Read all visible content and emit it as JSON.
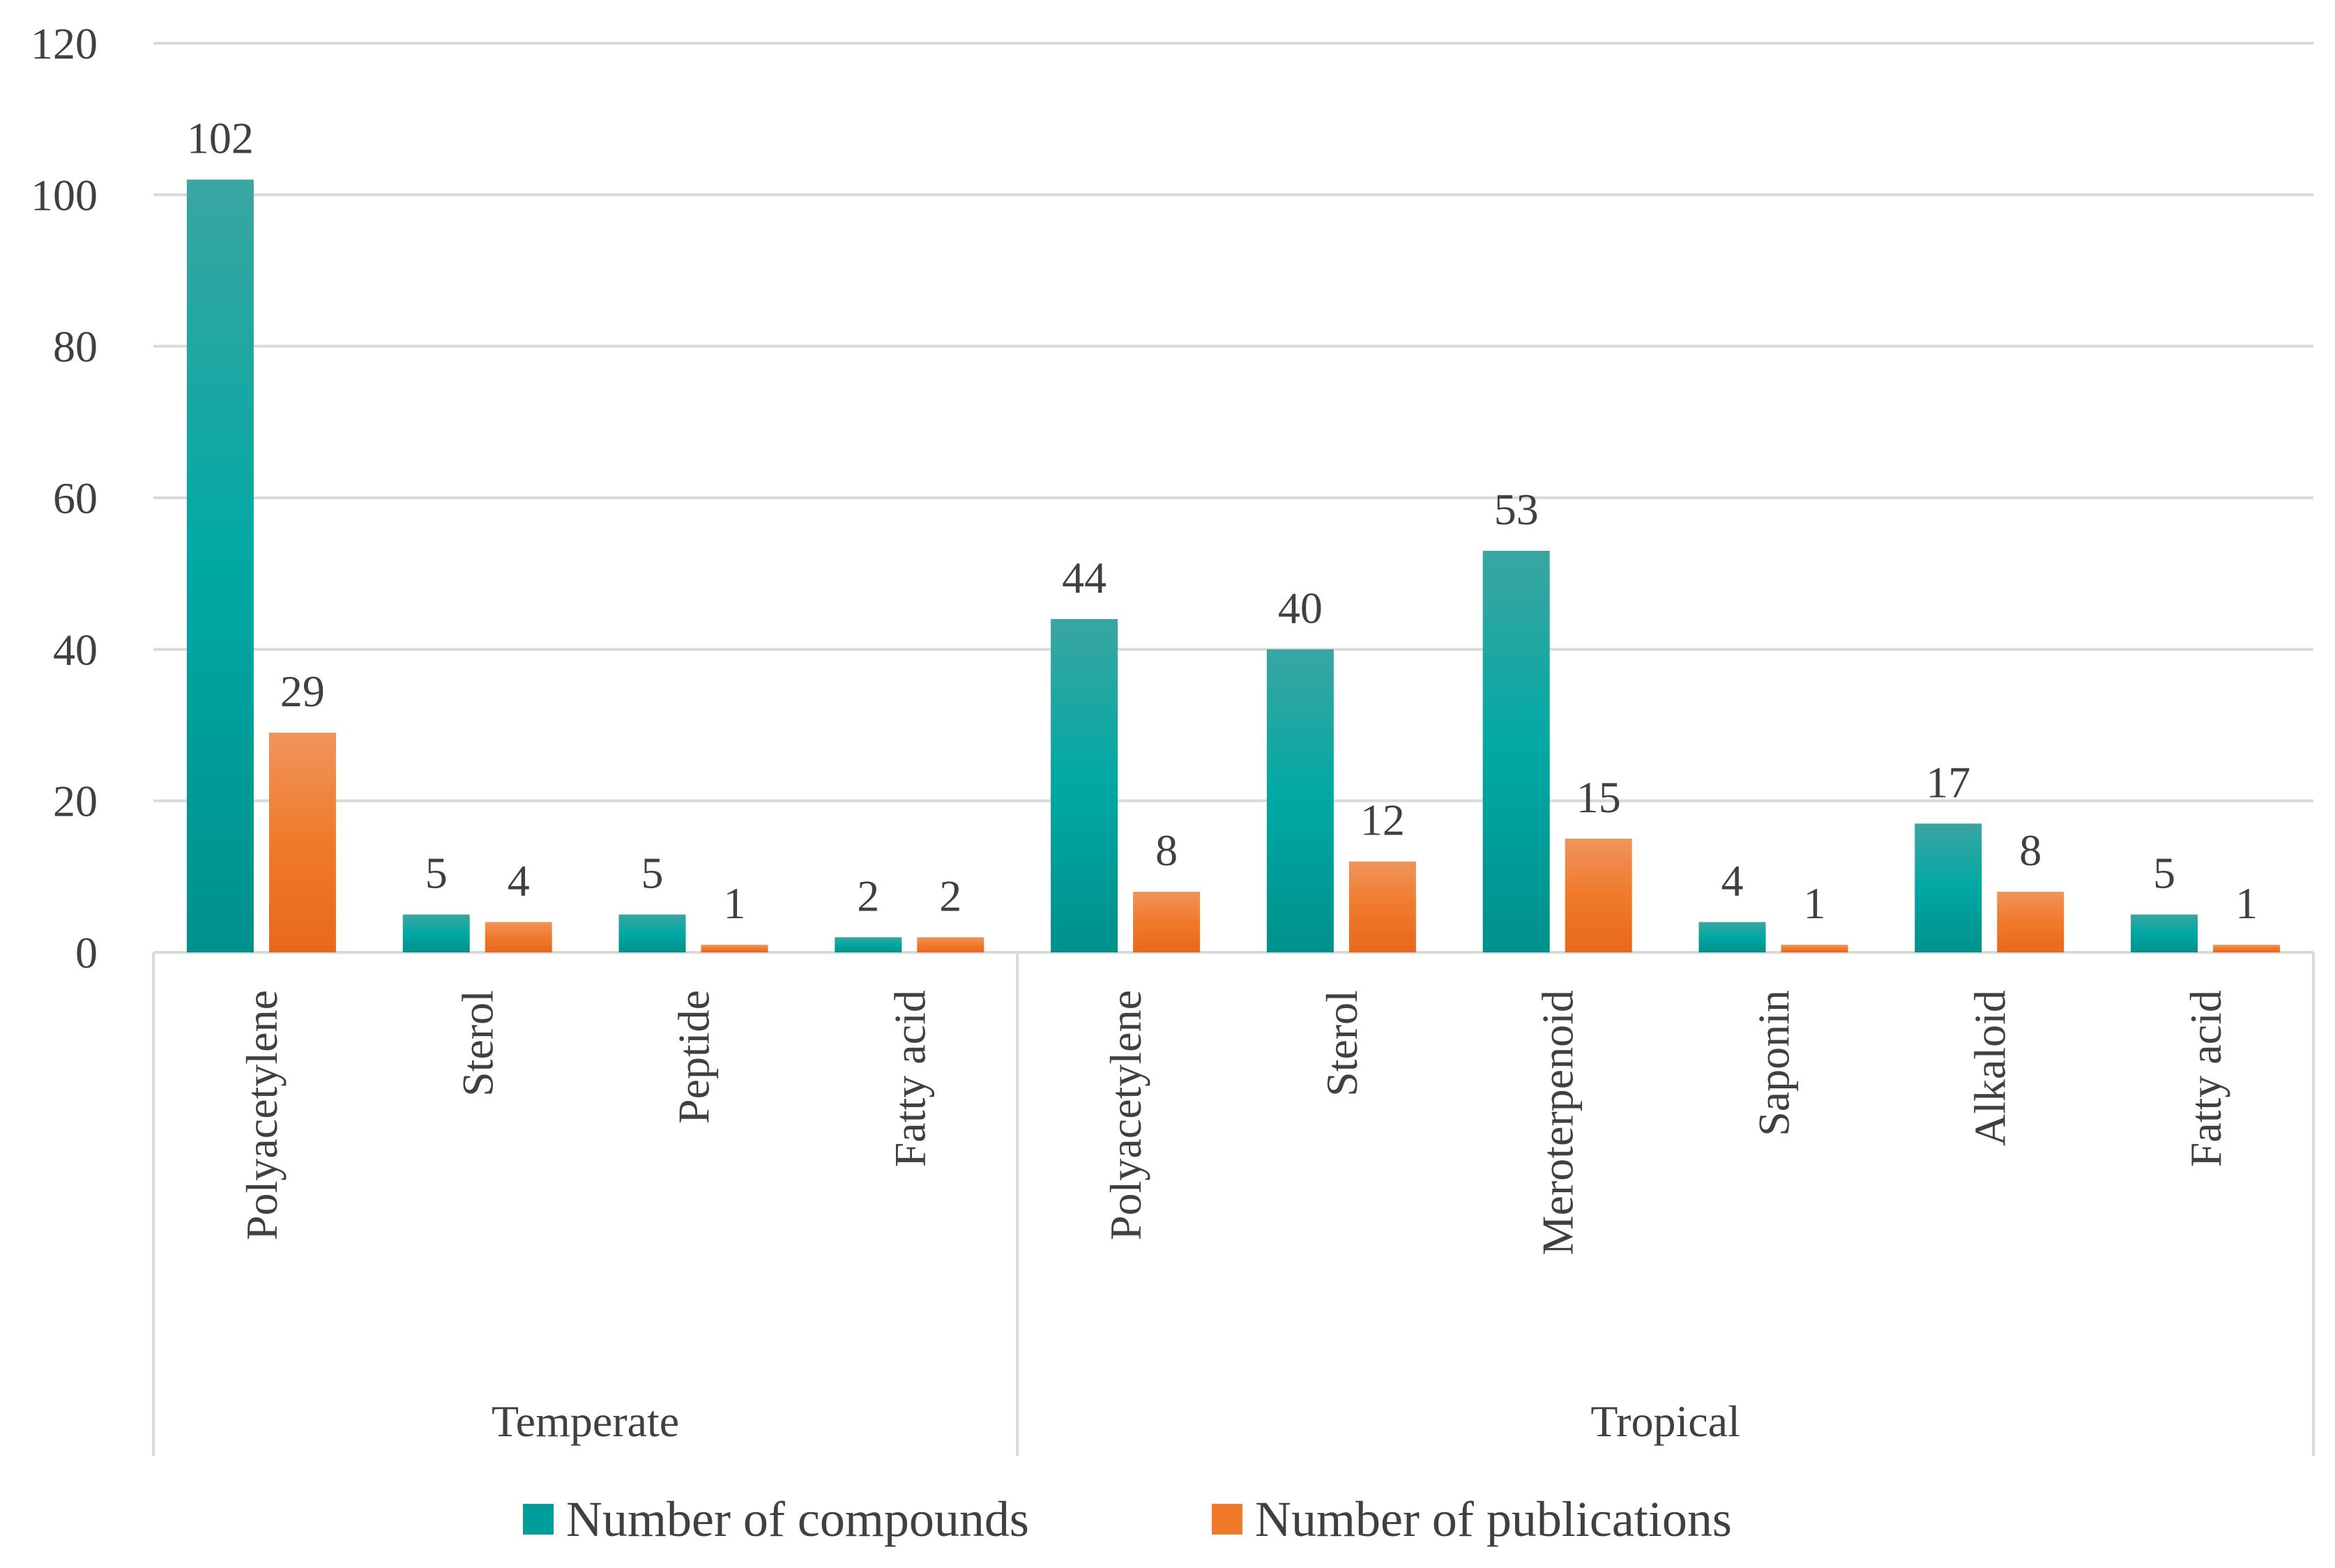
{
  "chart_data": {
    "type": "bar",
    "title": "",
    "xlabel": "",
    "ylabel": "",
    "ylim": [
      0,
      120
    ],
    "yticks": [
      0,
      20,
      40,
      60,
      80,
      100,
      120
    ],
    "grid": true,
    "legend_position": "bottom",
    "groups": [
      {
        "name": "Temperate",
        "categories": [
          "Polyacetylene",
          "Sterol",
          "Peptide",
          "Fatty acid"
        ]
      },
      {
        "name": "Tropical",
        "categories": [
          "Polyacetylene",
          "Sterol",
          "Meroterpenoid",
          "Saponin",
          "Alkaloid",
          "Fatty acid"
        ]
      }
    ],
    "series": [
      {
        "name": "Number of compounds",
        "color": "#009e9a",
        "values": [
          102,
          5,
          5,
          2,
          44,
          40,
          53,
          4,
          17,
          5
        ]
      },
      {
        "name": "Number of publications",
        "color": "#f07a2a",
        "values": [
          29,
          4,
          1,
          2,
          8,
          12,
          15,
          1,
          8,
          1
        ]
      }
    ]
  }
}
